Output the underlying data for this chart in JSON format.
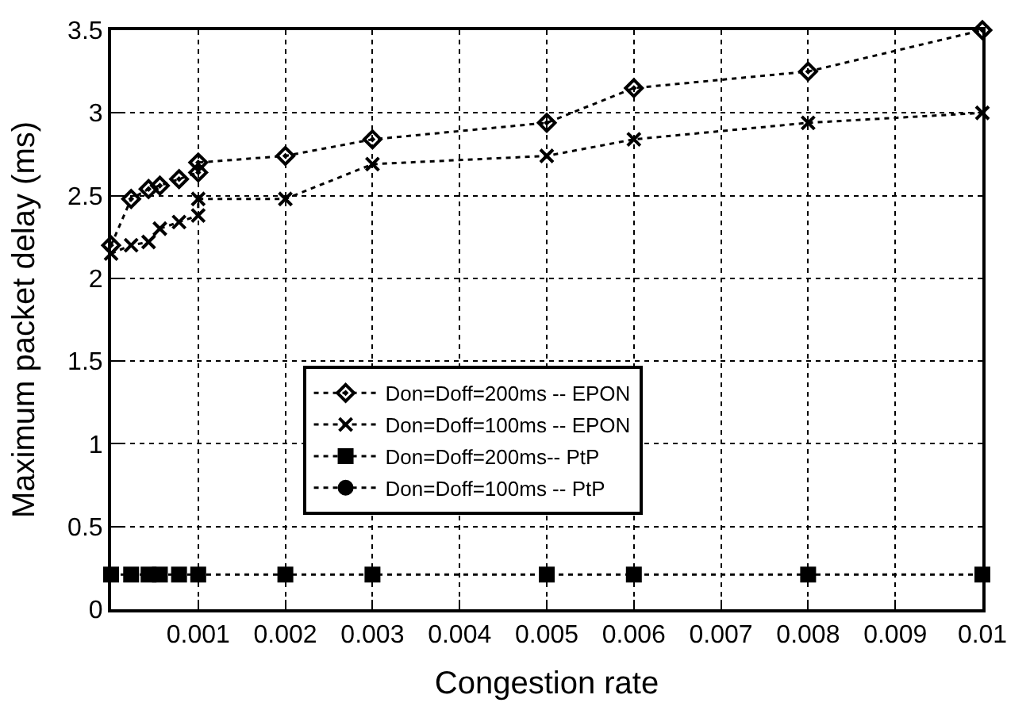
{
  "chart_data": {
    "type": "line",
    "xlabel": "Congestion rate",
    "ylabel": "Maximum packet delay (ms)",
    "xlim": [
      0,
      0.01
    ],
    "xticks": [
      0.001,
      0.002,
      0.003,
      0.004,
      0.005,
      0.006,
      0.007,
      0.008,
      0.009,
      0.01
    ],
    "ylim": [
      0,
      3.5
    ],
    "yticks": [
      0,
      0.5,
      1,
      1.5,
      2,
      2.5,
      3,
      3.5
    ],
    "grid": true,
    "legend": "center",
    "line_style": "dotted",
    "series": [
      {
        "name": "Don=Doff=200ms -- EPON",
        "color": "#000000",
        "marker": "diamond",
        "x": [
          0,
          0.00023,
          0.00043,
          0.00056,
          0.00078,
          0.001,
          0.001,
          0.002,
          0.003,
          0.005,
          0.006,
          0.008,
          0.01
        ],
        "values": [
          2.2,
          2.48,
          2.54,
          2.56,
          2.6,
          2.64,
          2.7,
          2.74,
          2.84,
          2.94,
          3.15,
          3.25,
          3.5
        ]
      },
      {
        "name": "Don=Doff=100ms -- EPON",
        "color": "#000000",
        "marker": "cross",
        "x": [
          0,
          0.00023,
          0.00043,
          0.00056,
          0.00078,
          0.001,
          0.001,
          0.002,
          0.003,
          0.005,
          0.006,
          0.008,
          0.01
        ],
        "values": [
          2.15,
          2.2,
          2.22,
          2.3,
          2.34,
          2.38,
          2.48,
          2.48,
          2.69,
          2.74,
          2.84,
          2.94,
          3.0
        ]
      },
      {
        "name": "Don=Doff=200ms-- PtP",
        "color": "#000000",
        "marker": "square",
        "x": [
          0,
          0.00023,
          0.00043,
          0.00056,
          0.00078,
          0.001,
          0.002,
          0.003,
          0.005,
          0.006,
          0.008,
          0.01
        ],
        "values": [
          0.21,
          0.21,
          0.21,
          0.21,
          0.21,
          0.21,
          0.21,
          0.21,
          0.21,
          0.21,
          0.21,
          0.21
        ]
      },
      {
        "name": "Don=Doff=100ms -- PtP",
        "color": "#000000",
        "marker": "circle"
      }
    ]
  }
}
